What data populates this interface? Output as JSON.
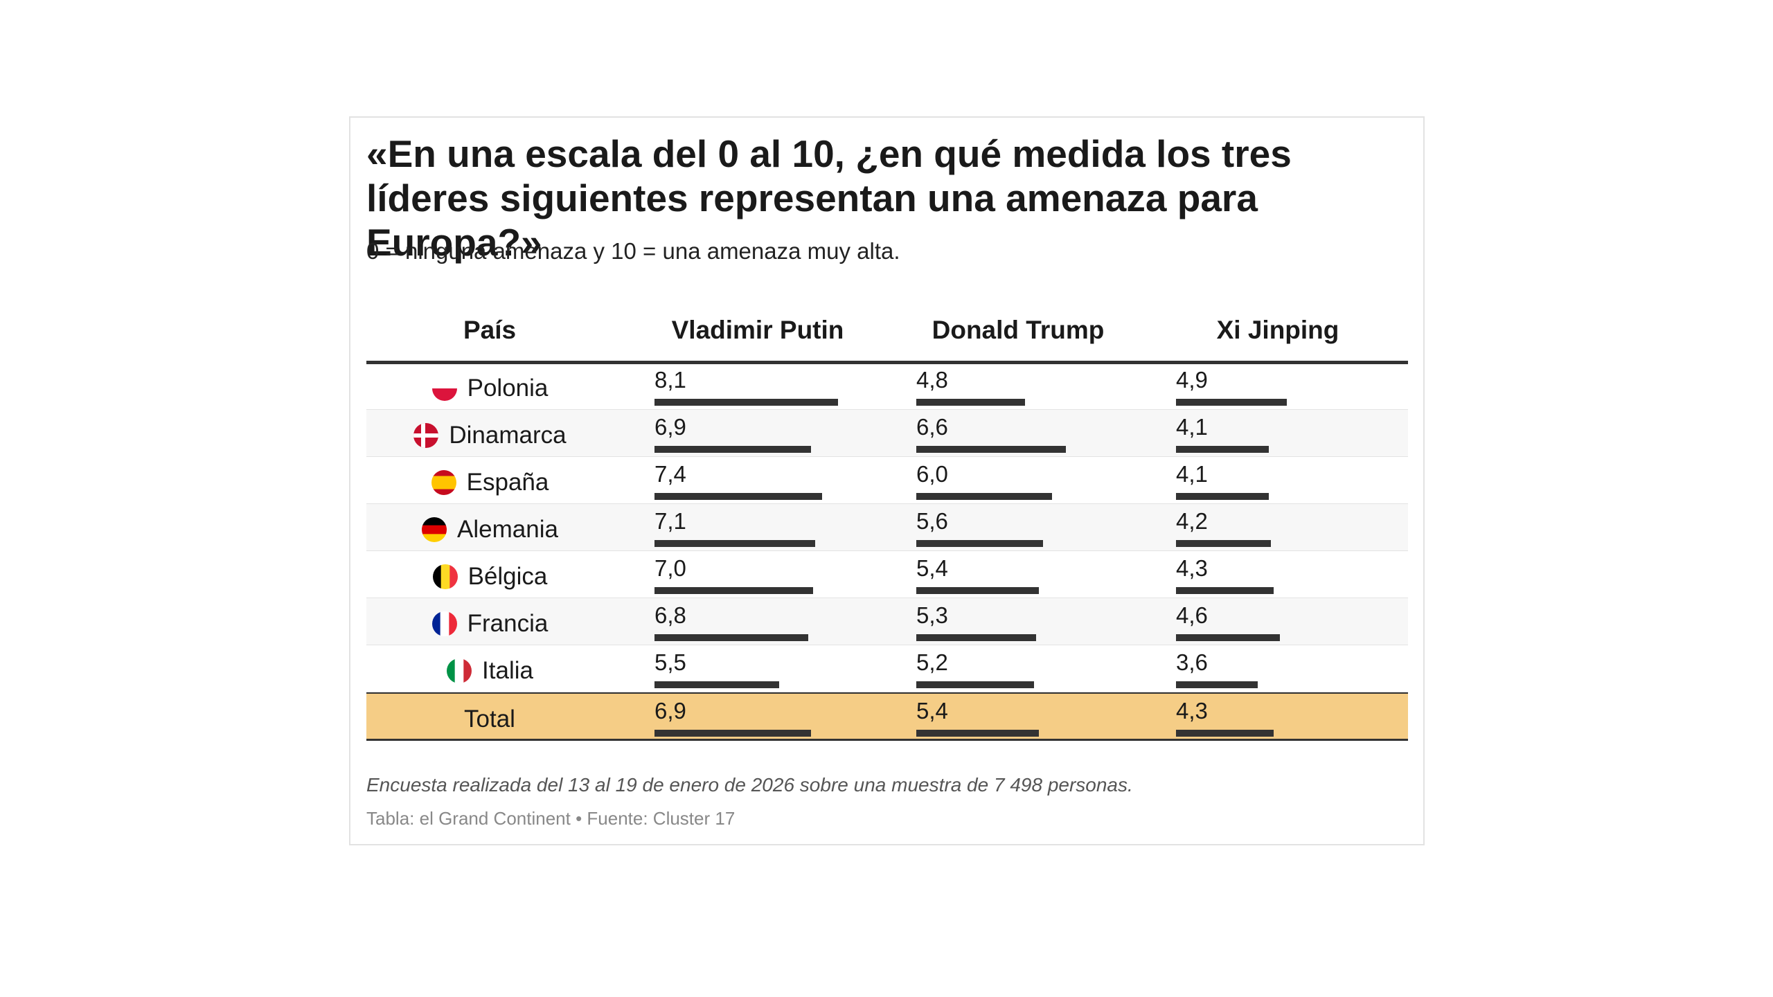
{
  "header": {
    "title": "«En una escala del 0 al 10, ¿en qué medida los tres líderes siguientes representan una amenaza para Europa?»",
    "subtitle": "0 = ninguna amenaza y 10 = una amenaza muy alta."
  },
  "table": {
    "columns": [
      "País",
      "Vladimir Putin",
      "Donald Trump",
      "Xi Jinping"
    ],
    "xlim": [
      0,
      10
    ],
    "rows": [
      {
        "country": "Polonia",
        "values": [
          8.1,
          4.8,
          4.9
        ],
        "value_labels": [
          "8,1",
          "4,8",
          "4,9"
        ]
      },
      {
        "country": "Dinamarca",
        "values": [
          6.9,
          6.6,
          4.1
        ],
        "value_labels": [
          "6,9",
          "6,6",
          "4,1"
        ]
      },
      {
        "country": "España",
        "values": [
          7.4,
          6.0,
          4.1
        ],
        "value_labels": [
          "7,4",
          "6,0",
          "4,1"
        ]
      },
      {
        "country": "Alemania",
        "values": [
          7.1,
          5.6,
          4.2
        ],
        "value_labels": [
          "7,1",
          "5,6",
          "4,2"
        ]
      },
      {
        "country": "Bélgica",
        "values": [
          7.0,
          5.4,
          4.3
        ],
        "value_labels": [
          "7,0",
          "5,4",
          "4,3"
        ]
      },
      {
        "country": "Francia",
        "values": [
          6.8,
          5.3,
          4.6
        ],
        "value_labels": [
          "6,8",
          "5,3",
          "4,6"
        ]
      },
      {
        "country": "Italia",
        "values": [
          5.5,
          5.2,
          3.6
        ],
        "value_labels": [
          "5,5",
          "5,2",
          "3,6"
        ]
      }
    ],
    "total": {
      "country": "Total",
      "values": [
        6.9,
        5.4,
        4.3
      ],
      "value_labels": [
        "6,9",
        "5,4",
        "4,3"
      ]
    }
  },
  "footer": {
    "note": "Encuesta realizada del 13 al 19 de enero de 2026 sobre una muestra de 7 498 personas.",
    "source": "Tabla: el Grand Continent • Fuente: Cluster 17"
  }
}
